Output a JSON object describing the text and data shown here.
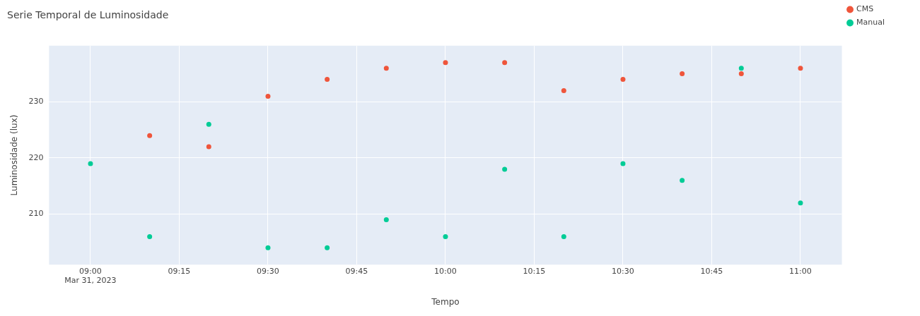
{
  "chart_data": {
    "type": "scatter",
    "title": "Serie Temporal de Luminosidade",
    "xlabel": "Tempo",
    "ylabel": "Luminosidade (lux)",
    "x": [
      "2023-03-31T09:00",
      "2023-03-31T09:10",
      "2023-03-31T09:20",
      "2023-03-31T09:30",
      "2023-03-31T09:40",
      "2023-03-31T09:50",
      "2023-03-31T10:00",
      "2023-03-31T10:10",
      "2023-03-31T10:20",
      "2023-03-31T10:30",
      "2023-03-31T10:40",
      "2023-03-31T10:50",
      "2023-03-31T11:00"
    ],
    "series": [
      {
        "name": "CMS",
        "color": "#ef553b",
        "values": [
          null,
          224,
          222,
          231,
          234,
          236,
          237,
          237,
          232,
          234,
          235,
          235,
          236
        ]
      },
      {
        "name": "Manual",
        "color": "#00cc96",
        "values": [
          219,
          206,
          226,
          204,
          204,
          209,
          206,
          218,
          206,
          219,
          216,
          236,
          212
        ]
      }
    ],
    "xlim": [
      "2023-03-31T08:53",
      "2023-03-31T11:07"
    ],
    "xticks": [
      {
        "value": "2023-03-31T09:00",
        "label": "09:00\nMar 31, 2023"
      },
      {
        "value": "2023-03-31T09:15",
        "label": "09:15"
      },
      {
        "value": "2023-03-31T09:30",
        "label": "09:30"
      },
      {
        "value": "2023-03-31T09:45",
        "label": "09:45"
      },
      {
        "value": "2023-03-31T10:00",
        "label": "10:00"
      },
      {
        "value": "2023-03-31T10:15",
        "label": "10:15"
      },
      {
        "value": "2023-03-31T10:30",
        "label": "10:30"
      },
      {
        "value": "2023-03-31T10:45",
        "label": "10:45"
      },
      {
        "value": "2023-03-31T11:00",
        "label": "11:00"
      }
    ],
    "ylim": [
      201,
      240
    ],
    "yticks": [
      210,
      220,
      230
    ],
    "grid": true,
    "legend": "top right",
    "marker": "circle"
  }
}
